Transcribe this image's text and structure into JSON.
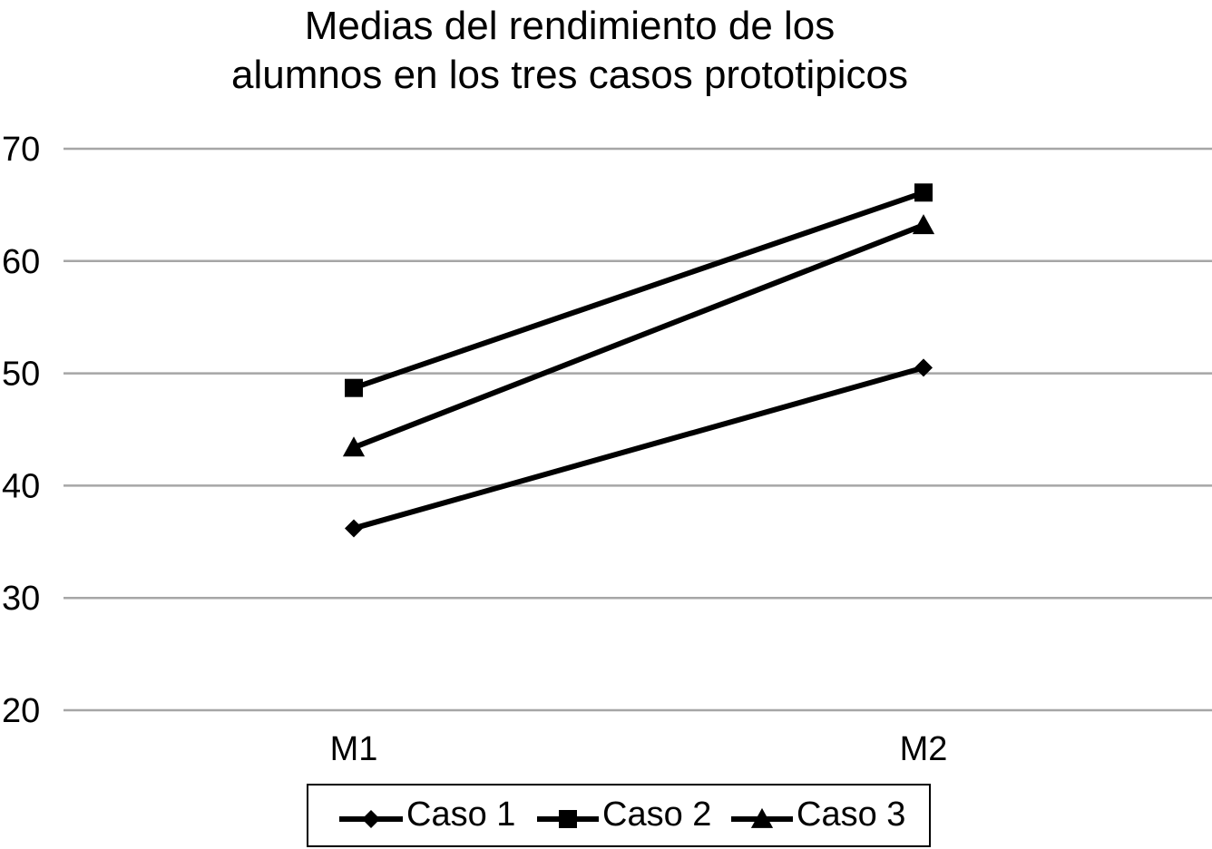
{
  "chart_data": {
    "type": "line",
    "title_lines": [
      "Medias del rendimiento de los",
      "alumnos en los tres casos prototipicos"
    ],
    "categories": [
      "M1",
      "M2"
    ],
    "yticks": [
      "20",
      "30",
      "40",
      "50",
      "60",
      "70"
    ],
    "ylim": [
      20,
      70
    ],
    "grid": true,
    "legend_position": "bottom",
    "series": [
      {
        "name": "Caso 1",
        "marker": "diamond",
        "values": [
          36.2,
          50.5
        ]
      },
      {
        "name": "Caso 2",
        "marker": "square",
        "values": [
          48.7,
          66.1
        ]
      },
      {
        "name": "Caso 3",
        "marker": "triangle",
        "values": [
          43.4,
          63.2
        ]
      }
    ],
    "line_color": "#000000",
    "grid_color": "#a6a6a6"
  }
}
